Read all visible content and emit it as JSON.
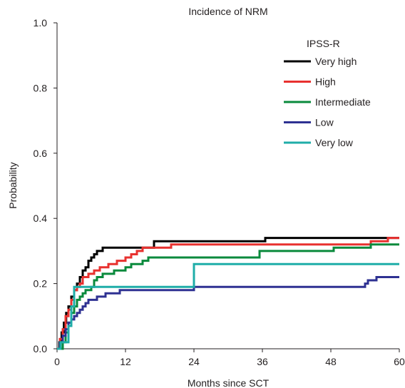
{
  "chart_data": {
    "type": "line",
    "step": true,
    "title": "Incidence of NRM",
    "xlabel": "Months since SCT",
    "ylabel": "Probability",
    "xlim": [
      0,
      60
    ],
    "ylim": [
      0,
      1.0
    ],
    "xticks": [
      0,
      12,
      24,
      36,
      48,
      60
    ],
    "xtick_labels": [
      "0",
      "12",
      "24",
      "36",
      "48",
      "60"
    ],
    "yticks": [
      0,
      0.2,
      0.4,
      0.6,
      0.8,
      1.0
    ],
    "ytick_labels": [
      "0.0",
      "0.2",
      "0.4",
      "0.6",
      "0.8",
      "1.0"
    ],
    "grid": false,
    "legend": {
      "title": "IPSS-R",
      "position": "top-right"
    },
    "series": [
      {
        "name": "Very high",
        "color": "#000000",
        "points": [
          [
            0,
            0
          ],
          [
            0.4,
            0.02
          ],
          [
            0.8,
            0.05
          ],
          [
            1.2,
            0.08
          ],
          [
            1.6,
            0.11
          ],
          [
            2.0,
            0.13
          ],
          [
            2.5,
            0.16
          ],
          [
            3.0,
            0.18
          ],
          [
            3.5,
            0.2
          ],
          [
            4.0,
            0.22
          ],
          [
            4.5,
            0.24
          ],
          [
            5.0,
            0.25
          ],
          [
            5.5,
            0.27
          ],
          [
            6.0,
            0.28
          ],
          [
            6.5,
            0.29
          ],
          [
            7.0,
            0.3
          ],
          [
            8.0,
            0.31
          ],
          [
            12.0,
            0.31
          ],
          [
            17.0,
            0.33
          ],
          [
            36.5,
            0.34
          ],
          [
            60,
            0.34
          ]
        ]
      },
      {
        "name": "High",
        "color": "#e8312f",
        "points": [
          [
            0,
            0
          ],
          [
            0.5,
            0.03
          ],
          [
            1.0,
            0.06
          ],
          [
            1.5,
            0.1
          ],
          [
            2.0,
            0.12
          ],
          [
            2.5,
            0.15
          ],
          [
            3.0,
            0.18
          ],
          [
            3.5,
            0.19
          ],
          [
            4.0,
            0.2
          ],
          [
            4.5,
            0.22
          ],
          [
            5.5,
            0.23
          ],
          [
            6.5,
            0.24
          ],
          [
            7.5,
            0.25
          ],
          [
            9.0,
            0.26
          ],
          [
            10.5,
            0.27
          ],
          [
            12.0,
            0.28
          ],
          [
            13.0,
            0.29
          ],
          [
            14.0,
            0.3
          ],
          [
            15.0,
            0.31
          ],
          [
            20.0,
            0.32
          ],
          [
            55.0,
            0.33
          ],
          [
            58.0,
            0.34
          ],
          [
            60,
            0.34
          ]
        ]
      },
      {
        "name": "Intermediate",
        "color": "#0a8a3c",
        "points": [
          [
            0,
            0
          ],
          [
            1.0,
            0.02
          ],
          [
            1.5,
            0.05
          ],
          [
            2.0,
            0.08
          ],
          [
            2.5,
            0.11
          ],
          [
            3.0,
            0.13
          ],
          [
            3.5,
            0.15
          ],
          [
            4.0,
            0.16
          ],
          [
            4.5,
            0.17
          ],
          [
            5.0,
            0.18
          ],
          [
            6.0,
            0.19
          ],
          [
            6.5,
            0.21
          ],
          [
            7.0,
            0.22
          ],
          [
            8.0,
            0.23
          ],
          [
            10.0,
            0.24
          ],
          [
            12.0,
            0.25
          ],
          [
            13.0,
            0.26
          ],
          [
            15.0,
            0.27
          ],
          [
            16.0,
            0.28
          ],
          [
            35.0,
            0.28
          ],
          [
            35.5,
            0.3
          ],
          [
            48.5,
            0.31
          ],
          [
            55.0,
            0.32
          ],
          [
            60,
            0.32
          ]
        ]
      },
      {
        "name": "Low",
        "color": "#2e3192",
        "points": [
          [
            0,
            0
          ],
          [
            0.5,
            0.02
          ],
          [
            1.0,
            0.04
          ],
          [
            1.5,
            0.06
          ],
          [
            2.0,
            0.08
          ],
          [
            2.5,
            0.09
          ],
          [
            3.0,
            0.1
          ],
          [
            3.5,
            0.11
          ],
          [
            4.0,
            0.12
          ],
          [
            4.5,
            0.13
          ],
          [
            5.0,
            0.14
          ],
          [
            5.5,
            0.15
          ],
          [
            7.0,
            0.16
          ],
          [
            8.5,
            0.17
          ],
          [
            11.0,
            0.18
          ],
          [
            24.0,
            0.19
          ],
          [
            54.0,
            0.2
          ],
          [
            54.5,
            0.21
          ],
          [
            56.0,
            0.22
          ],
          [
            60,
            0.22
          ]
        ]
      },
      {
        "name": "Very low",
        "color": "#1fada8",
        "points": [
          [
            0,
            0
          ],
          [
            0.6,
            0.02
          ],
          [
            1.8,
            0.02
          ],
          [
            2.0,
            0.07
          ],
          [
            2.5,
            0.13
          ],
          [
            3.0,
            0.19
          ],
          [
            24.0,
            0.19
          ],
          [
            24.0,
            0.26
          ],
          [
            60,
            0.26
          ]
        ]
      }
    ]
  }
}
